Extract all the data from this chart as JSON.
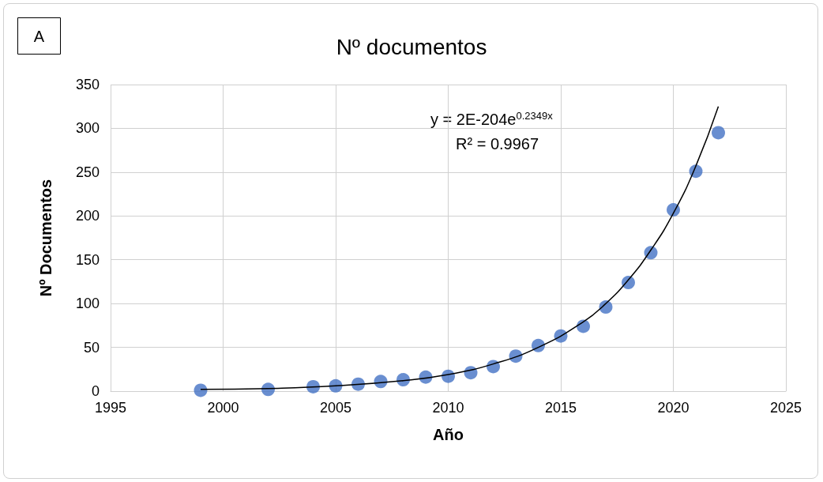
{
  "chart_data": {
    "type": "scatter",
    "title": "Nº documentos",
    "xlabel": "Año",
    "ylabel": "Nº Documentos",
    "x": [
      1999,
      2002,
      2004,
      2005,
      2006,
      2007,
      2008,
      2009,
      2010,
      2011,
      2012,
      2013,
      2014,
      2015,
      2016,
      2017,
      2018,
      2019,
      2020,
      2021,
      2022
    ],
    "series": [
      {
        "color": "#4472c4",
        "values": [
          1,
          2,
          5,
          6,
          8,
          11,
          13,
          16,
          17,
          21,
          28,
          40,
          52,
          63,
          74,
          96,
          124,
          158,
          207,
          251,
          295
        ]
      },
      {
        "type": "line",
        "color": "#000000",
        "marker": "none",
        "x": [
          1999,
          2002,
          2005,
          2008,
          2010,
          2012,
          2014,
          2016,
          2017,
          2018,
          2019,
          2020,
          2021,
          2022
        ],
        "values": [
          2,
          3,
          6,
          12,
          19,
          31,
          50,
          79,
          100,
          127,
          161,
          203,
          257,
          325
        ]
      }
    ],
    "xlim": [
      1995,
      2025
    ],
    "xticks": [
      1995,
      2000,
      2005,
      2010,
      2015,
      2020,
      2025
    ],
    "ylim": [
      0,
      350
    ],
    "yticks": [
      0,
      50,
      100,
      150,
      200,
      250,
      300,
      350
    ],
    "grid": true,
    "marker": "circle",
    "annotations": [
      "A",
      "y = 2E-204e$^{0.2349x}$",
      "R² = 0.9967"
    ]
  }
}
